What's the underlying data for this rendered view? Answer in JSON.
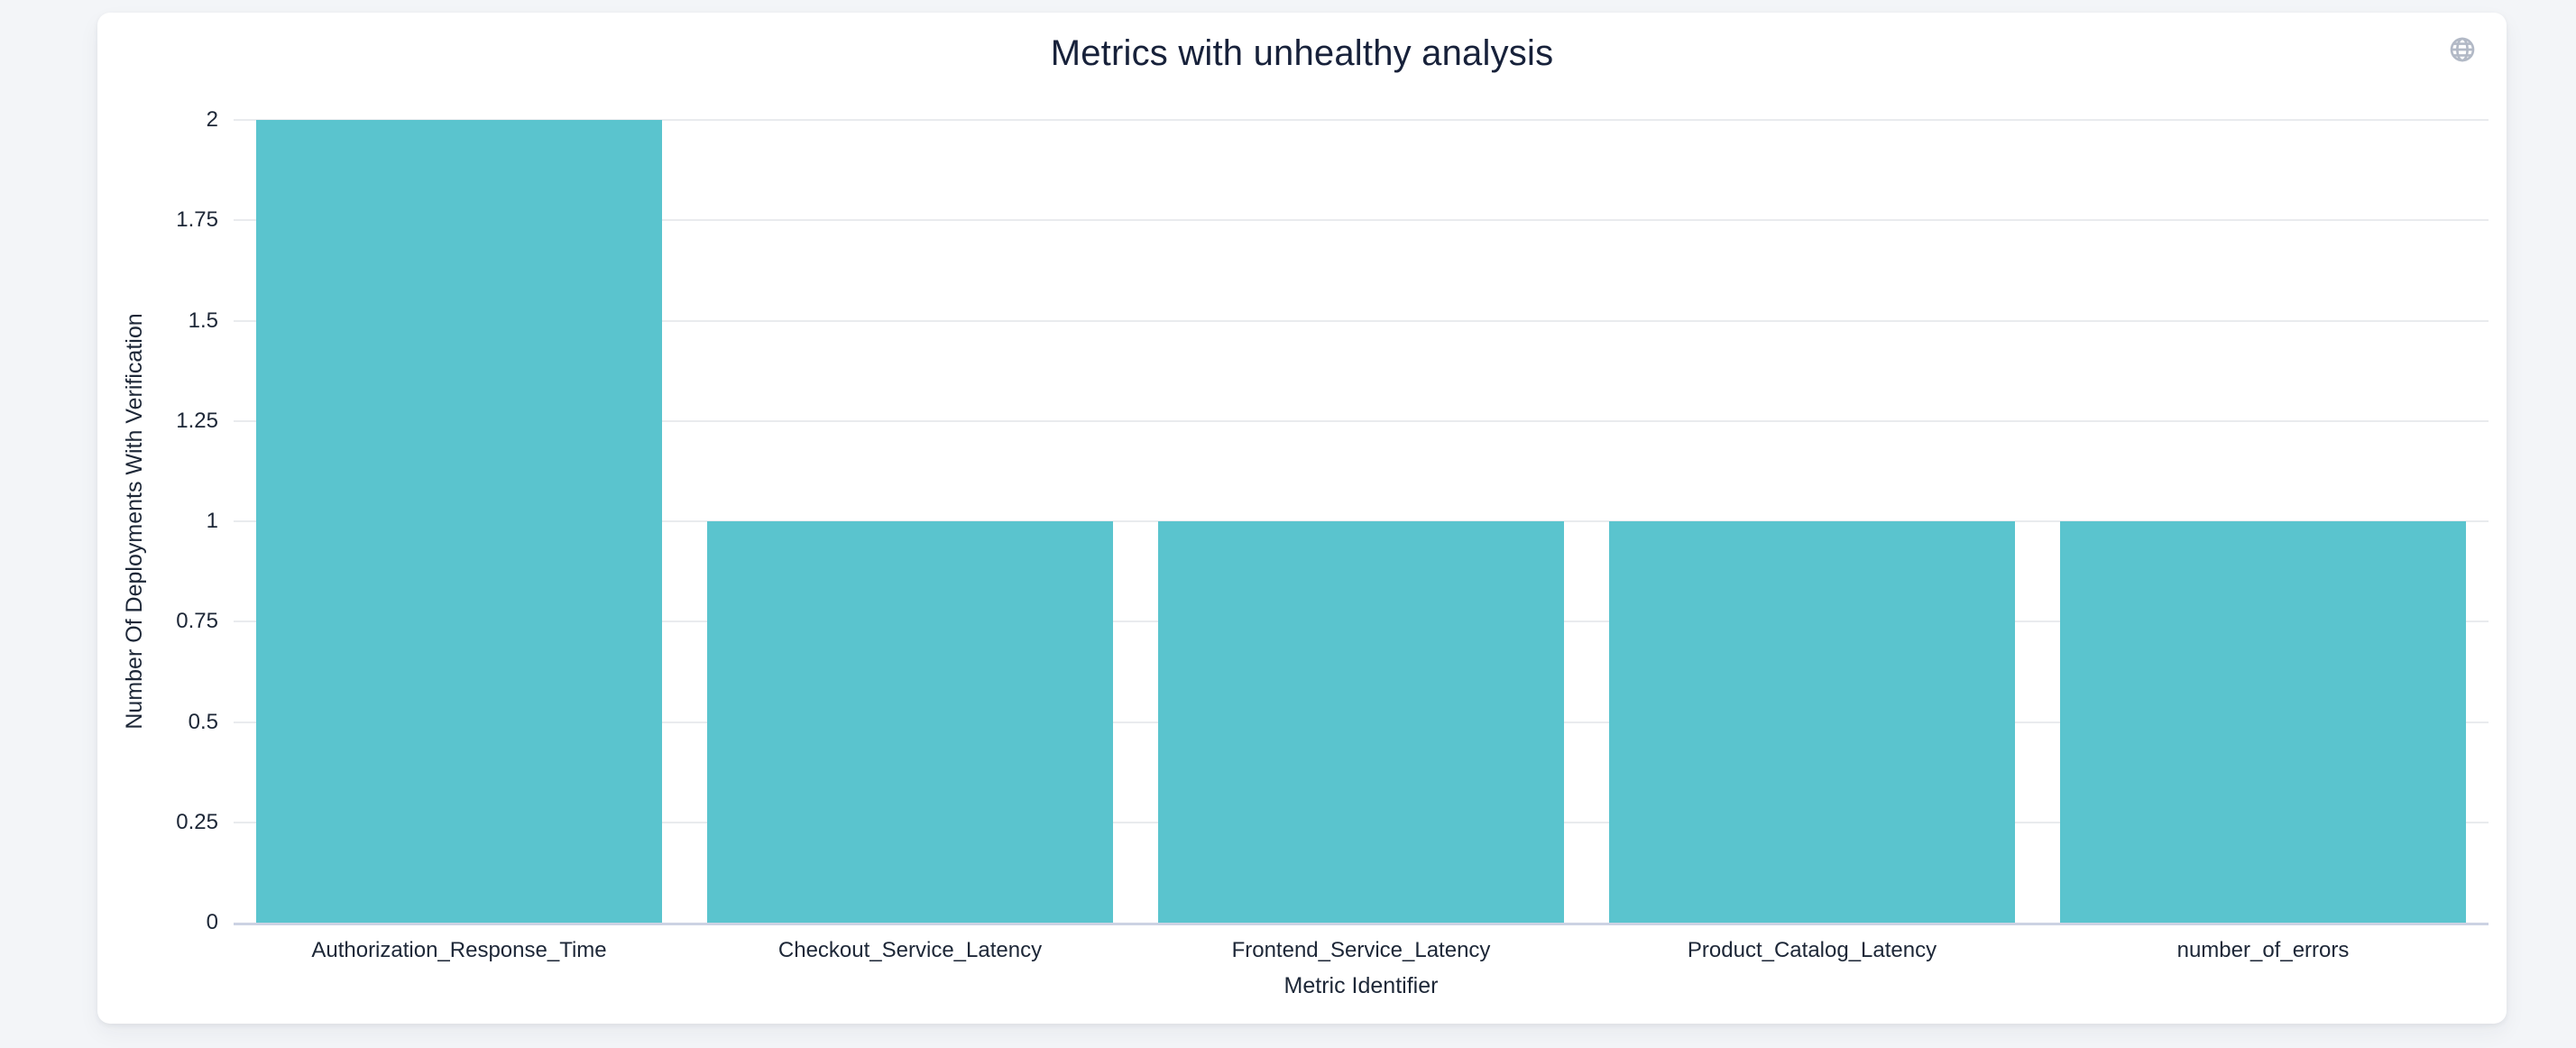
{
  "app": {
    "background_color": "#f3f5f8"
  },
  "card": {
    "title": "Metrics with unhealthy analysis"
  },
  "icons": {
    "globe": "globe-icon",
    "globe_color": "#b2b9c6"
  },
  "chart_data": {
    "type": "bar",
    "title": "Metrics with unhealthy analysis",
    "categories": [
      "Authorization_Response_Time",
      "Checkout_Service_Latency",
      "Frontend_Service_Latency",
      "Product_Catalog_Latency",
      "number_of_errors"
    ],
    "values": [
      2,
      1,
      1,
      1,
      1
    ],
    "xlabel": "Metric Identifier",
    "ylabel": "Number Of Deployments With Verification",
    "ylim": [
      0,
      2
    ],
    "yticks": [
      0,
      0.25,
      0.5,
      0.75,
      1,
      1.25,
      1.5,
      1.75,
      2
    ],
    "grid": true,
    "legend_position": "none",
    "bar_color": "#5ac4ce",
    "gridline_color": "#e9ebee",
    "axis_line_color": "#ccd2e3",
    "text_color": "#1d2737",
    "bar_width_ratio": 0.9
  }
}
